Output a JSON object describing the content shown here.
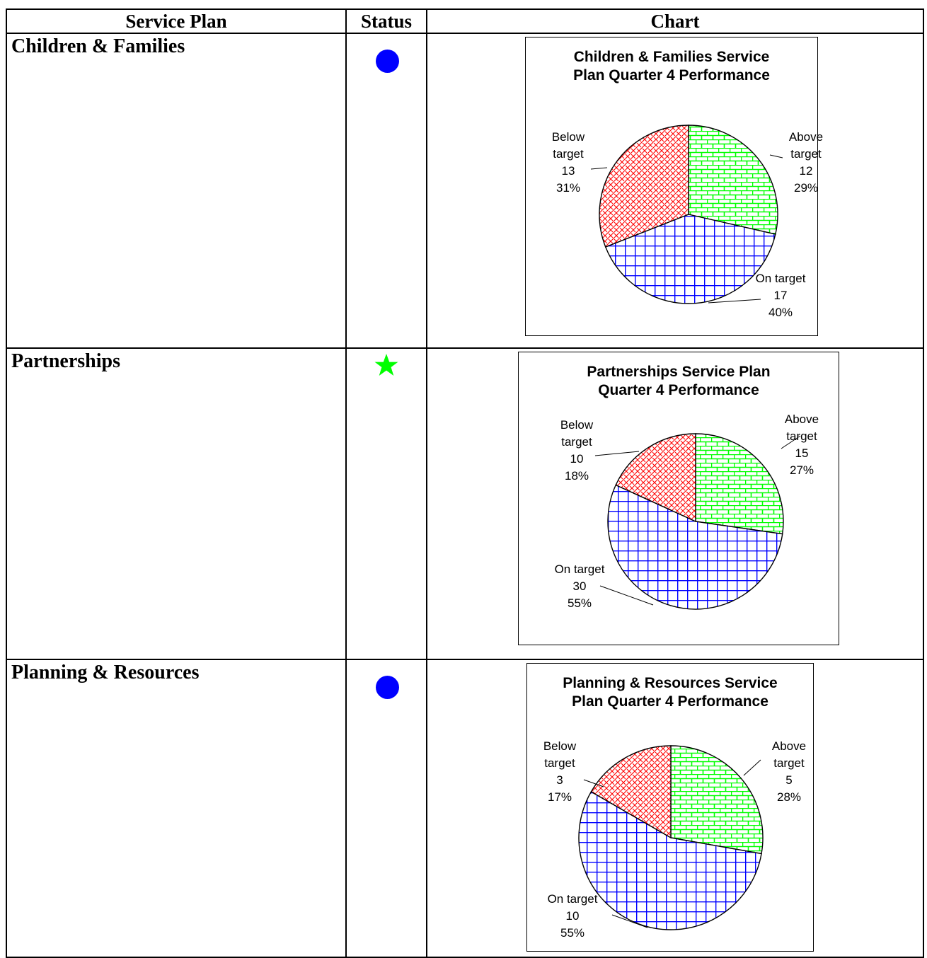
{
  "table": {
    "headers": {
      "plan": "Service Plan",
      "status": "Status",
      "chart": "Chart"
    },
    "colors": {
      "blue_status": "#0000ff",
      "green_status": "#00ff00"
    },
    "rows": [
      {
        "plan": "Children & Families",
        "status_icon": "blue-circle-icon",
        "status_color": "#0000ff"
      },
      {
        "plan": "Partnerships",
        "status_icon": "green-star-icon",
        "status_color": "#00ff00"
      },
      {
        "plan": "Planning & Resources",
        "status_icon": "blue-circle-icon",
        "status_color": "#0000ff"
      }
    ]
  },
  "chart_data": [
    {
      "type": "pie",
      "title": [
        "Children & Families Service",
        "Plan Quarter 4 Performance"
      ],
      "slices": [
        {
          "label": [
            "Above",
            "target"
          ],
          "value": 12,
          "percent": "29%",
          "color": "#00ff00",
          "pattern": "brick"
        },
        {
          "label": [
            "On target"
          ],
          "value": 17,
          "percent": "40%",
          "color": "#0000ff",
          "pattern": "grid"
        },
        {
          "label": [
            "Below",
            "target"
          ],
          "value": 13,
          "percent": "31%",
          "color": "#ff0000",
          "pattern": "weave"
        }
      ]
    },
    {
      "type": "pie",
      "title": [
        "Partnerships Service Plan",
        "Quarter 4 Performance"
      ],
      "slices": [
        {
          "label": [
            "Above",
            "target"
          ],
          "value": 15,
          "percent": "27%",
          "color": "#00ff00",
          "pattern": "brick"
        },
        {
          "label": [
            "On target"
          ],
          "value": 30,
          "percent": "55%",
          "color": "#0000ff",
          "pattern": "grid"
        },
        {
          "label": [
            "Below",
            "target"
          ],
          "value": 10,
          "percent": "18%",
          "color": "#ff0000",
          "pattern": "weave"
        }
      ]
    },
    {
      "type": "pie",
      "title": [
        "Planning & Resources Service",
        "Plan Quarter 4 Performance"
      ],
      "slices": [
        {
          "label": [
            "Above",
            "target"
          ],
          "value": 5,
          "percent": "28%",
          "color": "#00ff00",
          "pattern": "brick"
        },
        {
          "label": [
            "On target"
          ],
          "value": 10,
          "percent": "55%",
          "color": "#0000ff",
          "pattern": "grid"
        },
        {
          "label": [
            "Below",
            "target"
          ],
          "value": 3,
          "percent": "17%",
          "color": "#ff0000",
          "pattern": "weave"
        }
      ]
    }
  ]
}
